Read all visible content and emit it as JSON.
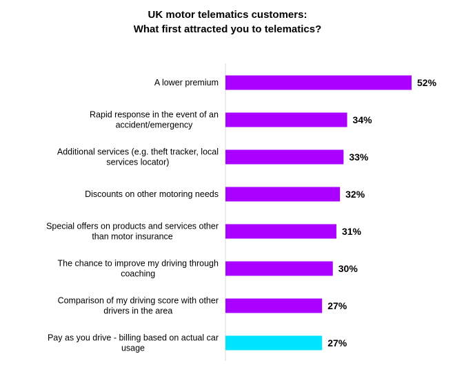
{
  "title_lines": [
    "UK motor telematics customers:",
    "What first attracted you to telematics?"
  ],
  "colors": {
    "default_bar": "#AA00FF",
    "highlight_bar": "#00E5FF",
    "axis": "#D9D9D9"
  },
  "chart_data": {
    "type": "bar",
    "orientation": "horizontal",
    "title": "UK motor telematics customers: What first attracted you to telematics?",
    "categories": [
      [
        "A lower premium"
      ],
      [
        "Rapid response in the event of an",
        "accident/emergency"
      ],
      [
        "Additional services (e.g. theft tracker, local",
        "services locator)"
      ],
      [
        "Discounts on other motoring needs"
      ],
      [
        "Special offers on products and services other",
        "than motor insurance"
      ],
      [
        "The chance to improve my driving through",
        "coaching"
      ],
      [
        "Comparison of my driving score with other",
        "drivers in the area"
      ],
      [
        "Pay as you drive - billing based on actual car",
        "usage"
      ]
    ],
    "values": [
      52,
      34,
      33,
      32,
      31,
      30,
      27,
      27
    ],
    "value_labels": [
      "52%",
      "34%",
      "33%",
      "32%",
      "31%",
      "30%",
      "27%",
      "27%"
    ],
    "highlight_index": 7,
    "unit": "%",
    "xlim": [
      0,
      55
    ],
    "grid": false,
    "legend": "none"
  }
}
